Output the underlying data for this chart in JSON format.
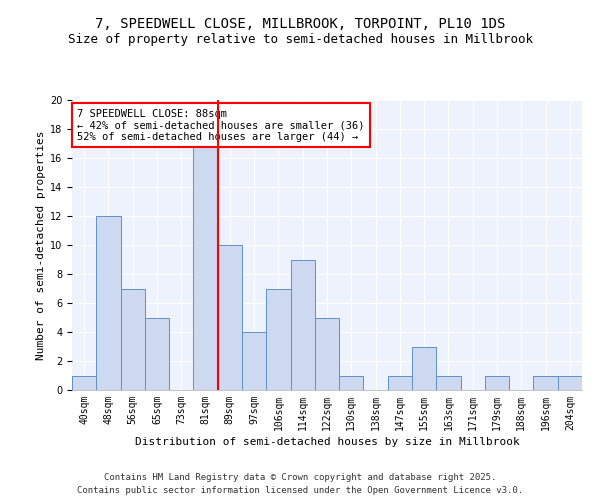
{
  "title": "7, SPEEDWELL CLOSE, MILLBROOK, TORPOINT, PL10 1DS",
  "subtitle": "Size of property relative to semi-detached houses in Millbrook",
  "xlabel": "Distribution of semi-detached houses by size in Millbrook",
  "ylabel": "Number of semi-detached properties",
  "categories": [
    "40sqm",
    "48sqm",
    "56sqm",
    "65sqm",
    "73sqm",
    "81sqm",
    "89sqm",
    "97sqm",
    "106sqm",
    "114sqm",
    "122sqm",
    "130sqm",
    "138sqm",
    "147sqm",
    "155sqm",
    "163sqm",
    "171sqm",
    "179sqm",
    "188sqm",
    "196sqm",
    "204sqm"
  ],
  "values": [
    1,
    12,
    7,
    5,
    0,
    17,
    10,
    4,
    7,
    9,
    5,
    1,
    0,
    1,
    3,
    1,
    0,
    1,
    0,
    1,
    1
  ],
  "bar_color": "#ccd9f0",
  "bar_edge_color": "#6090c8",
  "property_line_index": 6,
  "annotation_text": "7 SPEEDWELL CLOSE: 88sqm\n← 42% of semi-detached houses are smaller (36)\n52% of semi-detached houses are larger (44) →",
  "ylim": [
    0,
    20
  ],
  "background_color": "#edf2fc",
  "footer_line1": "Contains HM Land Registry data © Crown copyright and database right 2025.",
  "footer_line2": "Contains public sector information licensed under the Open Government Licence v3.0.",
  "title_fontsize": 10,
  "subtitle_fontsize": 9,
  "axis_label_fontsize": 8,
  "tick_fontsize": 7,
  "annotation_fontsize": 7.5,
  "footer_fontsize": 6.5
}
